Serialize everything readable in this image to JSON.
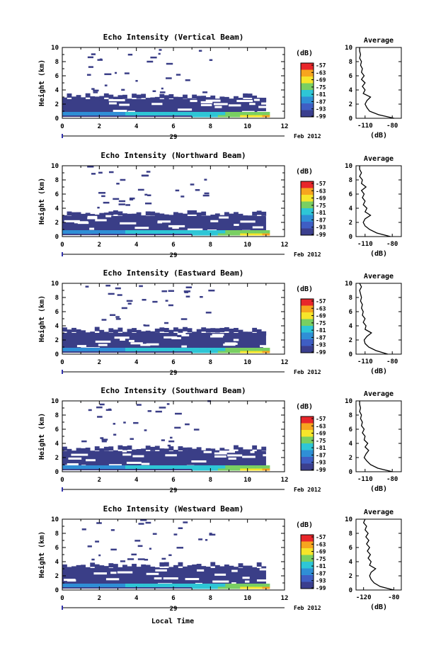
{
  "common": {
    "ylabel": "Height (km)",
    "yticks": [
      "0",
      "2",
      "4",
      "6",
      "8",
      "10"
    ],
    "xticks": [
      "0",
      "2",
      "4",
      "6",
      "8",
      "10",
      "12"
    ],
    "date_day": "29",
    "date_month": "Feb 2012",
    "unit_label": "(dB)",
    "avg_title": "Average",
    "avg_xlabel": "(dB)",
    "colorbar_ticks": [
      "-57",
      "-63",
      "-69",
      "-75",
      "-81",
      "-87",
      "-93",
      "-99"
    ],
    "colorbar_colors": [
      "#e8262a",
      "#f7a51e",
      "#f6e52a",
      "#79cf62",
      "#2ec6d6",
      "#2f8fd6",
      "#3f5ec4",
      "#3b3f8e"
    ],
    "echo_color": "#3a3e87",
    "xlabel": "Local Time"
  },
  "charts": [
    {
      "title": "Echo Intensity (Vertical Beam)",
      "avg_xticks": [
        "-110",
        "-80"
      ],
      "chart_data": {
        "type": "heatmap",
        "xlim": [
          0,
          12
        ],
        "ylim": [
          0,
          10
        ],
        "main_layer_top_km": 3.0,
        "data_end_hour": 11.0,
        "avg_profile": {
          "xlim": [
            -120,
            -70
          ],
          "height_km": [
            0,
            0.5,
            1,
            1.5,
            2,
            2.5,
            3,
            3.5,
            4,
            4.5,
            5,
            5.5,
            6,
            6.5,
            7,
            7.5,
            8,
            8.5,
            9,
            9.5,
            10
          ],
          "db": [
            -78,
            -95,
            -105,
            -108,
            -110,
            -108,
            -104,
            -112,
            -110,
            -113,
            -110,
            -114,
            -111,
            -114,
            -113,
            -115,
            -114,
            -116,
            -115,
            -116,
            -116
          ]
        }
      }
    },
    {
      "title": "Echo Intensity (Northward Beam)",
      "avg_xticks": [
        "-110",
        "-80"
      ],
      "chart_data": {
        "type": "heatmap",
        "xlim": [
          0,
          12
        ],
        "ylim": [
          0,
          10
        ],
        "main_layer_top_km": 3.2,
        "data_end_hour": 11.0,
        "avg_profile": {
          "xlim": [
            -120,
            -70
          ],
          "height_km": [
            0,
            0.5,
            1,
            1.5,
            2,
            2.5,
            3,
            3.5,
            4,
            4.5,
            5,
            5.5,
            6,
            6.5,
            7,
            7.5,
            8,
            8.5,
            9,
            9.5,
            10
          ],
          "db": [
            -82,
            -97,
            -105,
            -110,
            -112,
            -110,
            -104,
            -110,
            -108,
            -112,
            -110,
            -113,
            -111,
            -114,
            -109,
            -114,
            -113,
            -116,
            -114,
            -116,
            -116
          ]
        }
      }
    },
    {
      "title": "Echo Intensity (Eastward Beam)",
      "avg_xticks": [
        "-110",
        "-80"
      ],
      "chart_data": {
        "type": "heatmap",
        "xlim": [
          0,
          12
        ],
        "ylim": [
          0,
          10
        ],
        "main_layer_top_km": 3.3,
        "data_end_hour": 11.0,
        "avg_profile": {
          "xlim": [
            -120,
            -70
          ],
          "height_km": [
            0,
            0.5,
            1,
            1.5,
            2,
            2.5,
            3,
            3.5,
            4,
            4.5,
            5,
            5.5,
            6,
            6.5,
            7,
            7.5,
            8,
            8.5,
            9,
            9.5,
            10
          ],
          "db": [
            -85,
            -98,
            -106,
            -110,
            -111,
            -108,
            -103,
            -110,
            -109,
            -112,
            -110,
            -113,
            -112,
            -114,
            -113,
            -115,
            -114,
            -115,
            -116,
            -114,
            -116
          ]
        }
      }
    },
    {
      "title": "Echo Intensity (Southward Beam)",
      "avg_xticks": [
        "-110",
        "-80"
      ],
      "chart_data": {
        "type": "heatmap",
        "xlim": [
          0,
          12
        ],
        "ylim": [
          0,
          10
        ],
        "main_layer_top_km": 3.2,
        "data_end_hour": 11.0,
        "avg_profile": {
          "xlim": [
            -120,
            -70
          ],
          "height_km": [
            0,
            0.5,
            1,
            1.5,
            2,
            2.5,
            3,
            3.5,
            4,
            4.5,
            5,
            5.5,
            6,
            6.5,
            7,
            7.5,
            8,
            8.5,
            9,
            9.5,
            10
          ],
          "db": [
            -80,
            -96,
            -104,
            -108,
            -111,
            -109,
            -106,
            -110,
            -107,
            -111,
            -110,
            -113,
            -111,
            -114,
            -113,
            -115,
            -114,
            -116,
            -115,
            -116,
            -116
          ]
        }
      }
    },
    {
      "title": "Echo Intensity (Westward Beam)",
      "avg_xticks": [
        "-120",
        "-80"
      ],
      "chart_data": {
        "type": "heatmap",
        "xlim": [
          0,
          12
        ],
        "ylim": [
          0,
          10
        ],
        "main_layer_top_km": 3.4,
        "data_end_hour": 11.0,
        "avg_profile": {
          "xlim": [
            -130,
            -70
          ],
          "height_km": [
            0,
            0.5,
            1,
            1.5,
            2,
            2.5,
            3,
            3.5,
            4,
            4.5,
            5,
            5.5,
            6,
            6.5,
            7,
            7.5,
            8,
            8.5,
            9,
            9.5,
            10
          ],
          "db": [
            -80,
            -98,
            -106,
            -110,
            -112,
            -110,
            -104,
            -112,
            -110,
            -114,
            -111,
            -115,
            -112,
            -116,
            -113,
            -117,
            -114,
            -118,
            -116,
            -120,
            -118
          ]
        }
      }
    }
  ]
}
